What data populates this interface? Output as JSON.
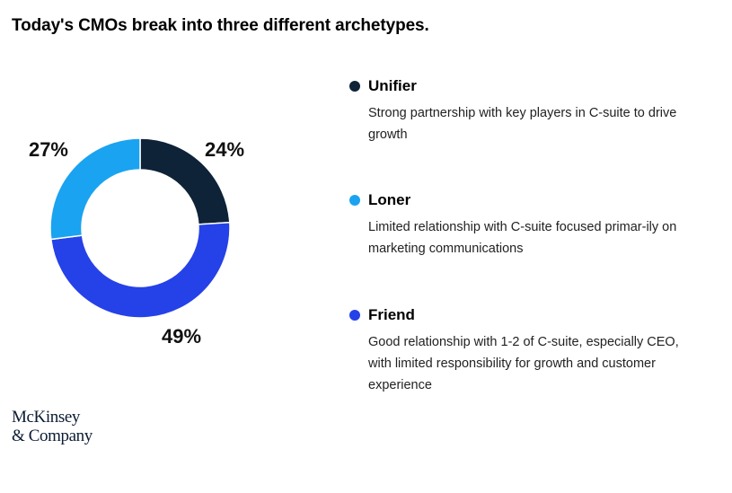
{
  "title": "Today's CMOs break into three different archetypes.",
  "chart_data": {
    "type": "pie",
    "style": "donut",
    "categories": [
      "Unifier",
      "Friend",
      "Loner"
    ],
    "values": [
      24,
      49,
      27
    ],
    "value_labels": [
      "24%",
      "49%",
      "27%"
    ],
    "colors": [
      "#0e2238",
      "#2541e8",
      "#1aa3f0"
    ],
    "legend_position": "right"
  },
  "legend": [
    {
      "name": "Unifier",
      "color": "#0e2238",
      "description": "Strong partnership with key players in C-suite to drive growth"
    },
    {
      "name": "Loner",
      "color": "#1aa3f0",
      "description": "Limited relationship with C-suite focused primar-ily on marketing communications"
    },
    {
      "name": "Friend",
      "color": "#2541e8",
      "description": "Good relationship with 1-2 of C-suite, especially CEO, with limited responsibility for growth and customer experience"
    }
  ],
  "logo": {
    "line1": "McKinsey",
    "line2": "& Company"
  }
}
